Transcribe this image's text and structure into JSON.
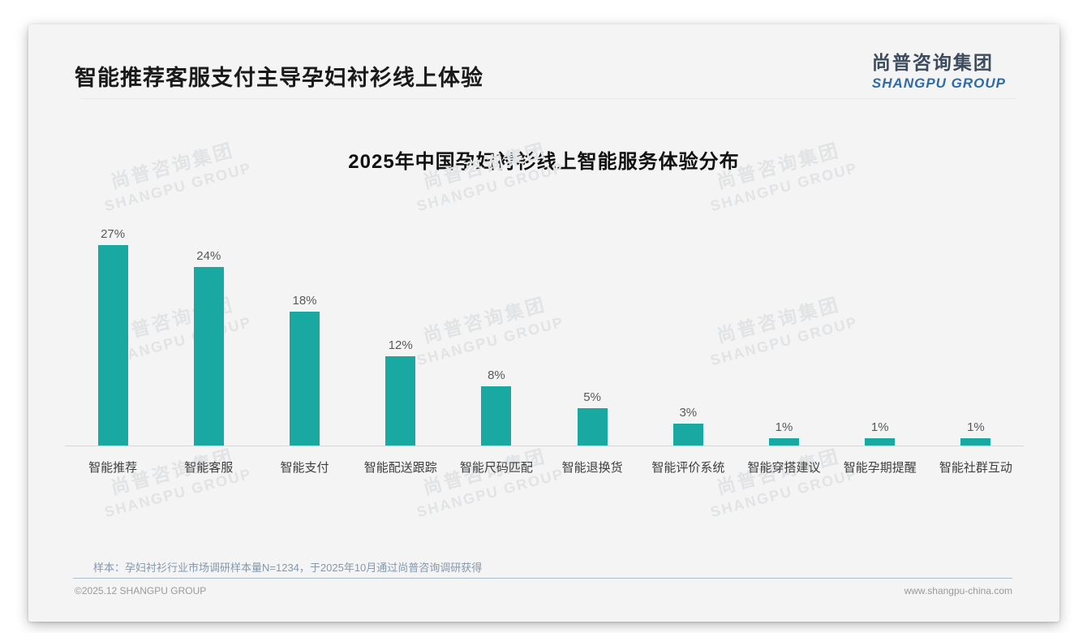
{
  "page": {
    "header": {
      "title": "智能推荐客服支付主导孕妇衬衫线上体验",
      "logo": {
        "cn": "尚普咨询集团",
        "en": "SHANGPU GROUP"
      }
    },
    "watermark": {
      "line1": "尚普咨询集团",
      "line2": "SHANGPU GROUP"
    },
    "footnote": "样本：孕妇衬衫行业市场调研样本量N=1234，于2025年10月通过尚普咨询调研获得",
    "footer": {
      "copyright": "©2025.12 SHANGPU GROUP",
      "website": "www.shangpu-china.com"
    }
  },
  "chart_data": {
    "type": "bar",
    "title": "2025年中国孕妇衬衫线上智能服务体验分布",
    "categories": [
      "智能推荐",
      "智能客服",
      "智能支付",
      "智能配送跟踪",
      "智能尺码匹配",
      "智能退换货",
      "智能评价系统",
      "智能穿搭建议",
      "智能孕期提醒",
      "智能社群互动"
    ],
    "values": [
      27,
      24,
      18,
      12,
      8,
      5,
      3,
      1,
      1,
      1
    ],
    "unit": "%",
    "xlabel": "",
    "ylabel": "",
    "ylim": [
      0,
      30
    ],
    "grid": false,
    "legend": false,
    "bar_color": "#19a8a2",
    "value_label_color": "#595959"
  }
}
